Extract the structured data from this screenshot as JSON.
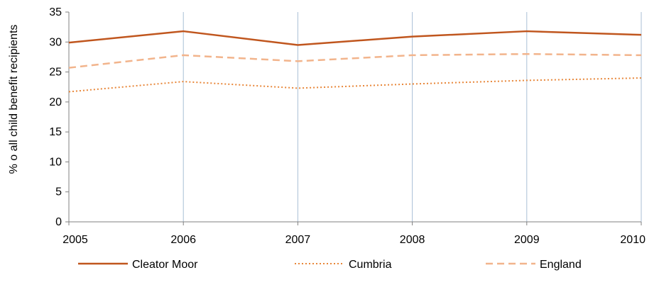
{
  "chart_data": {
    "type": "line",
    "title": "",
    "xlabel": "",
    "ylabel": "% o all child benefit recipients",
    "x": [
      "2005",
      "2006",
      "2007",
      "2008",
      "2009",
      "2010"
    ],
    "ylim": [
      0,
      35
    ],
    "yticks": [
      0,
      5,
      10,
      15,
      20,
      25,
      30,
      35
    ],
    "grid": "vertical",
    "legend_position": "bottom",
    "series": [
      {
        "name": "Cleator Moor",
        "values": [
          29.9,
          31.8,
          29.5,
          30.9,
          31.8,
          31.2
        ],
        "color": "#C0561E",
        "style": "solid"
      },
      {
        "name": "Cumbria",
        "values": [
          21.7,
          23.4,
          22.3,
          23.0,
          23.6,
          24.0
        ],
        "color": "#E8873A",
        "style": "dotted"
      },
      {
        "name": "England",
        "values": [
          25.7,
          27.8,
          26.8,
          27.8,
          28.0,
          27.8
        ],
        "color": "#F2B48C",
        "style": "dashed"
      }
    ]
  }
}
